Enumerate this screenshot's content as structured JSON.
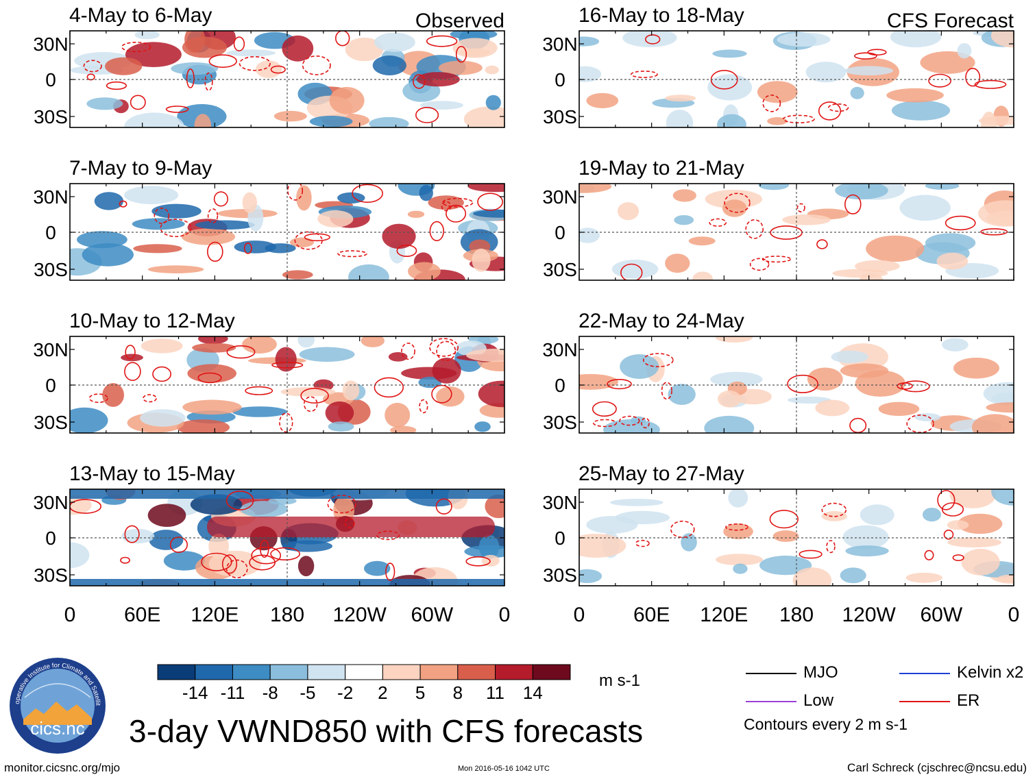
{
  "title": "3-day VWND850 with CFS forecasts",
  "column_headers": {
    "left": "Observed",
    "right": "CFS Forecast"
  },
  "footer": {
    "url": "monitor.cicsnc.org/mjo",
    "timestamp": "Mon 2016-05-16 1042 UTC",
    "credit": "Carl Schreck (cjschrec@ncsu.edu)"
  },
  "logo": {
    "text": "cics.nc",
    "ring_text": "Cooperative Institute for Climate and Satellites"
  },
  "colorbar": {
    "units": "m s-1",
    "tick_labels": [
      "-14",
      "-11",
      "-8",
      "-5",
      "-2",
      "2",
      "5",
      "8",
      "11",
      "14"
    ],
    "colors": [
      "#0a3c78",
      "#1f68ac",
      "#3d8cc3",
      "#8bbedc",
      "#cfe3f0",
      "#ffffff",
      "#fcd4c0",
      "#f2a282",
      "#d95f4c",
      "#b41b2b",
      "#6d0a1e"
    ]
  },
  "legend": {
    "entries": [
      {
        "label": "MJO",
        "color": "#000000"
      },
      {
        "label": "Kelvin x2",
        "color": "#1c3fd6"
      },
      {
        "label": "Low",
        "color": "#9a3fd6"
      },
      {
        "label": "ER",
        "color": "#e01414"
      }
    ],
    "contour_note": "Contours every 2 m s-1"
  },
  "chart_data": {
    "type": "heatmap",
    "variable": "VWND850",
    "x_tick_labels": [
      "0",
      "60E",
      "120E",
      "180",
      "120W",
      "60W",
      "0"
    ],
    "x_range_degE": [
      0,
      360
    ],
    "y_tick_labels": [
      "30N",
      "0",
      "30S"
    ],
    "y_range_lat": [
      -40,
      40
    ],
    "panels": [
      {
        "column": "Observed",
        "period": "4-May to 6-May"
      },
      {
        "column": "Observed",
        "period": "7-May to 9-May"
      },
      {
        "column": "Observed",
        "period": "10-May to 12-May"
      },
      {
        "column": "Observed",
        "period": "13-May to 15-May"
      },
      {
        "column": "CFS Forecast",
        "period": "16-May to 18-May"
      },
      {
        "column": "CFS Forecast",
        "period": "19-May to 21-May"
      },
      {
        "column": "CFS Forecast",
        "period": "22-May to 24-May"
      },
      {
        "column": "CFS Forecast",
        "period": "25-May to 27-May"
      }
    ]
  }
}
